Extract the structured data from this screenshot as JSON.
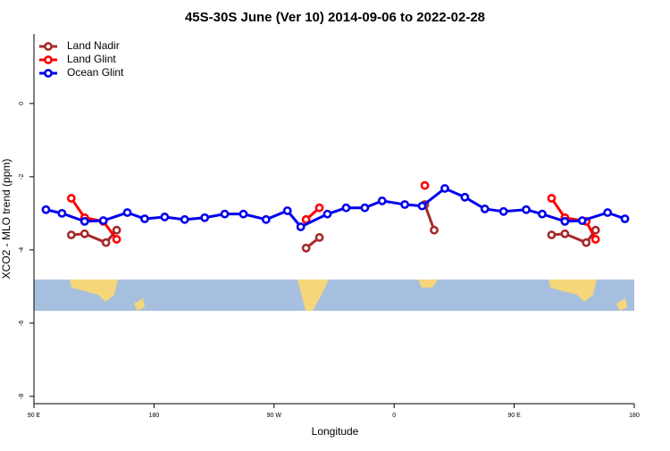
{
  "chart_data": {
    "type": "line",
    "title": "45S-30S June (Ver 10)   2014-09-06 to 2022-02-28",
    "x_label": "Longitude",
    "y_label": "XCO2 - MLO trend (ppm)",
    "xlim": [
      90,
      540
    ],
    "ylim": [
      -8.2,
      1.9
    ],
    "xticks": [
      {
        "value": 90,
        "label": "90 E"
      },
      {
        "value": 180,
        "label": "180"
      },
      {
        "value": 270,
        "label": "90 W"
      },
      {
        "value": 360,
        "label": "0"
      },
      {
        "value": 450,
        "label": "90 E"
      },
      {
        "value": 540,
        "label": "180"
      }
    ],
    "yticks": [
      0,
      -2,
      -4,
      -6,
      -8
    ],
    "legend": "top-left",
    "series": [
      {
        "name": "Land Nadir",
        "color": "#a52a2a",
        "x": [
          118,
          128,
          144,
          152,
          220,
          294,
          304,
          340,
          383,
          390,
          430,
          478,
          488,
          504,
          511
        ],
        "values": [
          -3.59,
          -3.56,
          -3.8,
          -3.46,
          null,
          -3.95,
          -3.66,
          null,
          -2.76,
          -3.46,
          null,
          -3.59,
          -3.56,
          -3.8,
          -3.46
        ]
      },
      {
        "name": "Land Glint",
        "color": "#ff0000",
        "x": [
          118,
          128,
          142,
          152,
          220,
          294,
          304,
          340,
          383,
          430,
          478,
          488,
          504,
          511
        ],
        "values": [
          -2.59,
          -3.12,
          -3.22,
          -3.71,
          null,
          -3.17,
          -2.85,
          null,
          -2.24,
          null,
          -2.59,
          -3.12,
          -3.22,
          -3.71
        ]
      },
      {
        "name": "Ocean Glint",
        "color": "#0000ee",
        "x": [
          99,
          111,
          128,
          142,
          160,
          173,
          188,
          203,
          218,
          233,
          247,
          264,
          280,
          290,
          310,
          324,
          338,
          351,
          368,
          381,
          398,
          413,
          428,
          442,
          459,
          471,
          488,
          501,
          520,
          533
        ],
        "values": [
          -2.9,
          -3.0,
          -3.22,
          -3.2,
          -2.98,
          -3.15,
          -3.1,
          -3.17,
          -3.12,
          -3.02,
          -3.02,
          -3.17,
          -2.93,
          -3.37,
          -3.02,
          -2.85,
          -2.85,
          -2.66,
          -2.76,
          -2.8,
          -2.32,
          -2.56,
          -2.88,
          -2.95,
          -2.9,
          -3.02,
          -3.22,
          -3.2,
          -2.98,
          -3.15
        ]
      }
    ]
  }
}
